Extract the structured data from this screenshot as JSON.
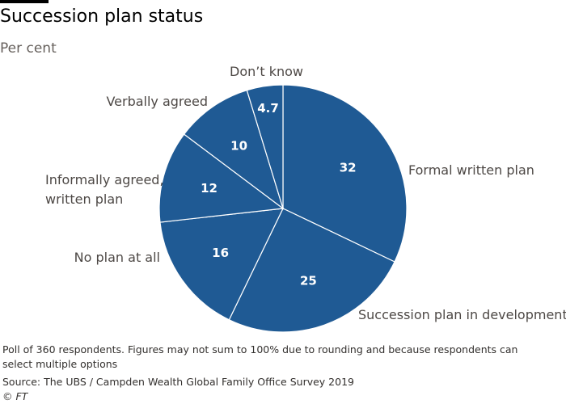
{
  "title": "Succession plan status",
  "subtitle": "Per cent",
  "footnote": "Poll of 360 respondents. Figures may not sum to 100% due to rounding and because respondents can select multiple options",
  "source": "Source: The UBS / Campden Wealth Global Family Office Survey 2019",
  "credit": "© FT",
  "colors": {
    "slice": "#1f5a94",
    "separator": "#ffffff"
  },
  "chart_data": {
    "type": "pie",
    "title": "Succession plan status",
    "subtitle": "Per cent",
    "units": "Per cent",
    "categories": [
      "Formal written plan",
      "Succession plan in development",
      "No plan at all",
      "Informally agreed, written plan",
      "Verbally agreed",
      "Don’t know"
    ],
    "values": [
      32,
      25,
      16,
      12,
      10,
      4.7
    ],
    "data_labels": [
      "32",
      "25",
      "16",
      "12",
      "10",
      "4.7"
    ],
    "category_label_lines": [
      [
        "Formal written plan"
      ],
      [
        "Succession plan in development"
      ],
      [
        "No plan at all"
      ],
      [
        "Informally agreed,",
        "written plan"
      ],
      [
        "Verbally agreed"
      ],
      [
        "Don’t know"
      ]
    ],
    "start": "12 o'clock",
    "direction": "clockwise",
    "legend": "none"
  }
}
